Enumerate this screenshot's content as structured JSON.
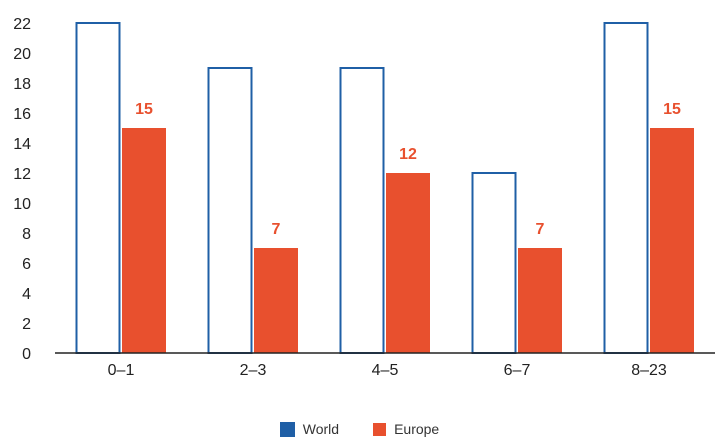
{
  "chart_data": {
    "type": "bar",
    "categories": [
      "0–1",
      "2–3",
      "4–5",
      "6–7",
      "8–23"
    ],
    "series": [
      {
        "name": "World",
        "values": [
          22,
          19,
          19,
          12,
          22
        ],
        "style": "outline",
        "color": "#1f5fa6"
      },
      {
        "name": "Europe",
        "values": [
          15,
          7,
          12,
          7,
          15
        ],
        "style": "filled",
        "color": "#e8502e",
        "labels": [
          "15",
          "7",
          "12",
          "7",
          "15"
        ]
      }
    ],
    "title": "",
    "xlabel": "",
    "ylabel": "",
    "ylim": [
      0,
      22
    ],
    "yticks": [
      "0",
      "2",
      "4",
      "6",
      "8",
      "10",
      "12",
      "14",
      "16",
      "18",
      "20",
      "22"
    ],
    "grid": false,
    "legend_position": "bottom-center"
  },
  "legend": {
    "world": "World",
    "europe": "Europe"
  },
  "colors": {
    "world": "#1f5fa6",
    "europe": "#e8502e",
    "axis": "#222222"
  }
}
